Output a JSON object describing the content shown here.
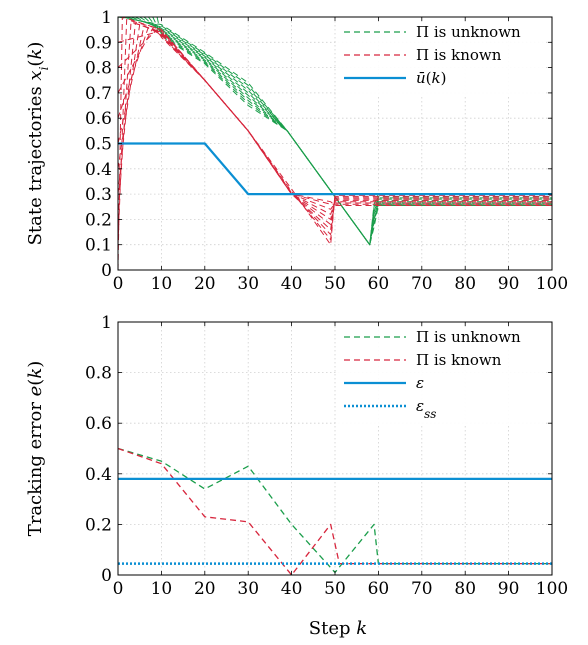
{
  "colors": {
    "green": "#1b9e4b",
    "red": "#d7263d",
    "blue": "#0b8fd3"
  },
  "chart_data": [
    {
      "type": "line",
      "title": "",
      "xlabel": "",
      "ylabel": "State trajectories x_i(k)",
      "xlim": [
        0,
        100
      ],
      "ylim": [
        0,
        1
      ],
      "xticks": [
        "0",
        "10",
        "20",
        "30",
        "40",
        "50",
        "60",
        "70",
        "80",
        "90",
        "100"
      ],
      "yticks": [
        "0",
        "0.1",
        "0.2",
        "0.3",
        "0.4",
        "0.5",
        "0.6",
        "0.7",
        "0.8",
        "0.9",
        "1"
      ],
      "grid": true,
      "legend_position": "top-right",
      "legend": [
        {
          "label": "Π is unknown",
          "style": "dashed",
          "color": "#1b9e4b"
        },
        {
          "label": "Π is known",
          "style": "dashed",
          "color": "#d7263d"
        },
        {
          "label": "ū(k)",
          "style": "solid",
          "color": "#0b8fd3"
        }
      ],
      "series": [
        {
          "name": "ū(k)",
          "style": "solid",
          "color": "#0b8fd3",
          "x": [
            0,
            20,
            30,
            100
          ],
          "y": [
            0.5,
            0.5,
            0.3,
            0.3
          ]
        },
        {
          "name": "Π is unknown",
          "style": "dashed",
          "color": "#1b9e4b",
          "note_count": 10,
          "trajectories": [
            {
              "x": [
                0,
                10,
                20,
                30,
                39,
                58,
                59,
                60,
                100
              ],
              "y": [
                1,
                0.97,
                0.86,
                0.74,
                0.55,
                0.1,
                0.26,
                0.3,
                0.3
              ]
            },
            {
              "x": [
                1,
                10,
                20,
                30,
                39,
                58,
                59,
                60,
                100
              ],
              "y": [
                1,
                0.965,
                0.855,
                0.73,
                0.55,
                0.1,
                0.25,
                0.29,
                0.29
              ]
            },
            {
              "x": [
                2,
                10,
                20,
                30,
                39,
                58,
                59,
                60,
                100
              ],
              "y": [
                1,
                0.96,
                0.85,
                0.72,
                0.55,
                0.1,
                0.24,
                0.285,
                0.285
              ]
            },
            {
              "x": [
                3,
                10,
                20,
                30,
                39,
                58,
                59,
                60,
                100
              ],
              "y": [
                1,
                0.955,
                0.845,
                0.71,
                0.55,
                0.1,
                0.23,
                0.28,
                0.28
              ]
            },
            {
              "x": [
                4,
                10,
                20,
                30,
                39,
                58,
                59,
                60,
                100
              ],
              "y": [
                1,
                0.95,
                0.84,
                0.7,
                0.55,
                0.1,
                0.22,
                0.275,
                0.275
              ]
            },
            {
              "x": [
                5,
                10,
                20,
                30,
                39,
                58,
                59,
                60,
                100
              ],
              "y": [
                1,
                0.945,
                0.835,
                0.69,
                0.55,
                0.1,
                0.21,
                0.27,
                0.27
              ]
            },
            {
              "x": [
                6,
                10,
                20,
                30,
                39,
                58,
                59,
                60,
                100
              ],
              "y": [
                1,
                0.94,
                0.83,
                0.68,
                0.55,
                0.1,
                0.2,
                0.265,
                0.265
              ]
            },
            {
              "x": [
                7,
                10,
                20,
                30,
                39,
                58,
                59,
                60,
                100
              ],
              "y": [
                1,
                0.935,
                0.825,
                0.67,
                0.55,
                0.1,
                0.19,
                0.26,
                0.26
              ]
            },
            {
              "x": [
                8,
                10,
                20,
                30,
                39,
                58,
                59,
                60,
                100
              ],
              "y": [
                1,
                0.93,
                0.82,
                0.66,
                0.55,
                0.1,
                0.18,
                0.26,
                0.26
              ]
            },
            {
              "x": [
                9,
                10,
                20,
                30,
                39,
                58,
                59,
                60,
                100
              ],
              "y": [
                1,
                0.925,
                0.815,
                0.65,
                0.55,
                0.1,
                0.17,
                0.255,
                0.255
              ]
            }
          ]
        },
        {
          "name": "Π is known",
          "style": "dashed",
          "color": "#d7263d",
          "trajectories": [
            {
              "x": [
                0,
                1,
                10,
                20,
                30,
                40,
                49,
                50,
                100
              ],
              "y": [
                0,
                1,
                0.95,
                0.75,
                0.55,
                0.32,
                0.1,
                0.3,
                0.3
              ]
            },
            {
              "x": [
                0,
                2,
                10,
                20,
                30,
                40,
                49,
                50,
                100
              ],
              "y": [
                0.1,
                0.99,
                0.95,
                0.75,
                0.55,
                0.31,
                0.12,
                0.295,
                0.295
              ]
            },
            {
              "x": [
                0,
                3,
                10,
                20,
                30,
                40,
                49,
                50,
                100
              ],
              "y": [
                0.2,
                0.98,
                0.94,
                0.75,
                0.55,
                0.305,
                0.14,
                0.29,
                0.29
              ]
            },
            {
              "x": [
                0,
                4,
                10,
                20,
                30,
                40,
                49,
                50,
                100
              ],
              "y": [
                0.3,
                0.975,
                0.94,
                0.75,
                0.55,
                0.3,
                0.16,
                0.285,
                0.285
              ]
            },
            {
              "x": [
                0,
                5,
                10,
                20,
                30,
                40,
                49,
                50,
                100
              ],
              "y": [
                0.4,
                0.97,
                0.935,
                0.75,
                0.55,
                0.3,
                0.18,
                0.28,
                0.28
              ]
            },
            {
              "x": [
                0,
                6,
                10,
                20,
                30,
                40,
                49,
                50,
                100
              ],
              "y": [
                0.5,
                0.965,
                0.93,
                0.75,
                0.55,
                0.3,
                0.2,
                0.275,
                0.275
              ]
            },
            {
              "x": [
                0,
                7,
                10,
                20,
                30,
                40,
                49,
                50,
                100
              ],
              "y": [
                0.6,
                0.96,
                0.93,
                0.75,
                0.55,
                0.3,
                0.22,
                0.27,
                0.27
              ]
            },
            {
              "x": [
                0,
                8,
                10,
                20,
                30,
                40,
                49,
                50,
                100
              ],
              "y": [
                0.7,
                0.955,
                0.925,
                0.75,
                0.55,
                0.3,
                0.24,
                0.265,
                0.265
              ]
            },
            {
              "x": [
                0,
                9,
                10,
                20,
                30,
                40,
                49,
                50,
                100
              ],
              "y": [
                0.8,
                0.95,
                0.92,
                0.75,
                0.55,
                0.3,
                0.26,
                0.26,
                0.26
              ]
            },
            {
              "x": [
                0,
                10,
                20,
                30,
                40,
                49,
                50,
                100
              ],
              "y": [
                0.9,
                0.945,
                0.75,
                0.55,
                0.3,
                0.27,
                0.255,
                0.255
              ]
            }
          ]
        }
      ]
    },
    {
      "type": "line",
      "title": "",
      "xlabel": "Step k",
      "ylabel": "Tracking error e(k)",
      "xlim": [
        0,
        100
      ],
      "ylim": [
        0,
        1
      ],
      "xticks": [
        "0",
        "10",
        "20",
        "30",
        "40",
        "50",
        "60",
        "70",
        "80",
        "90",
        "100"
      ],
      "yticks": [
        "0",
        "0.2",
        "0.4",
        "0.6",
        "0.8",
        "1"
      ],
      "grid": true,
      "legend_position": "top-right",
      "legend": [
        {
          "label": "Π is unknown",
          "style": "dashed",
          "color": "#1b9e4b"
        },
        {
          "label": "Π is known",
          "style": "dashed",
          "color": "#d7263d"
        },
        {
          "label": "ε",
          "style": "solid",
          "color": "#0b8fd3"
        },
        {
          "label": "ε_ss",
          "style": "dotted",
          "color": "#0b8fd3"
        }
      ],
      "series": [
        {
          "name": "Π is unknown",
          "style": "dashed",
          "color": "#1b9e4b",
          "x": [
            0,
            10,
            20,
            30,
            40,
            50,
            59,
            60,
            100
          ],
          "y": [
            0.5,
            0.45,
            0.34,
            0.43,
            0.2,
            0.01,
            0.2,
            0.045,
            0.045
          ]
        },
        {
          "name": "Π is known",
          "style": "dashed",
          "color": "#d7263d",
          "x": [
            0,
            10,
            20,
            30,
            40,
            49,
            51,
            100
          ],
          "y": [
            0.5,
            0.44,
            0.23,
            0.21,
            0.0,
            0.2,
            0.045,
            0.045
          ]
        },
        {
          "name": "ε",
          "style": "solid",
          "color": "#0b8fd3",
          "x": [
            0,
            100
          ],
          "y": [
            0.38,
            0.38
          ]
        },
        {
          "name": "ε_ss",
          "style": "dotted",
          "color": "#0b8fd3",
          "x": [
            0,
            100
          ],
          "y": [
            0.045,
            0.045
          ]
        }
      ]
    }
  ]
}
